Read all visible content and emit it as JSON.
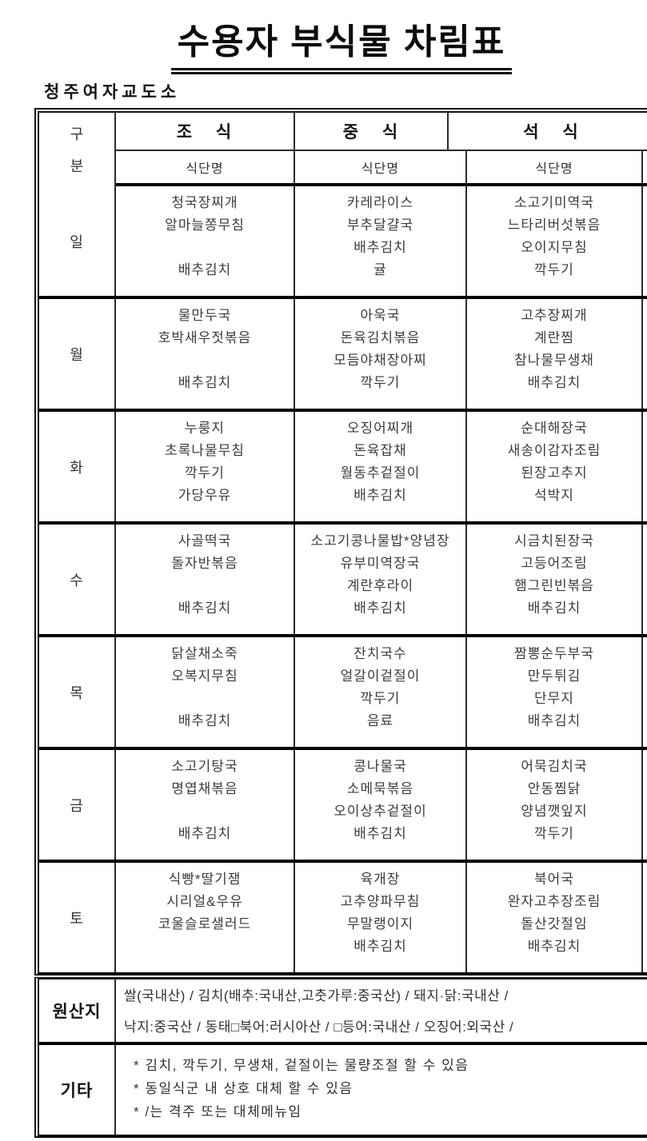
{
  "page": {
    "title": "수용자 부식물 차림표",
    "facility": "청주여자교도소"
  },
  "table": {
    "header": {
      "division_top": "구",
      "division_bottom": "분",
      "meals": [
        "조 식",
        "중 식",
        "석 식"
      ],
      "menu_name": "식단명"
    },
    "days": [
      {
        "label": "일",
        "breakfast": [
          "청국장찌개",
          "알마늘쫑무침",
          "",
          "배추김치"
        ],
        "lunch": [
          "카레라이스",
          "부추달걀국",
          "배추김치",
          "귤"
        ],
        "dinner": [
          "소고기미역국",
          "느타리버섯볶음",
          "오이지무침",
          "깍두기"
        ]
      },
      {
        "label": "월",
        "breakfast": [
          "물만두국",
          "호박새우젓볶음",
          "",
          "배추김치"
        ],
        "lunch": [
          "아욱국",
          "돈육김치볶음",
          "모듬야채장아찌",
          "깍두기"
        ],
        "dinner": [
          "고추장찌개",
          "계란찜",
          "참나물무생채",
          "배추김치"
        ]
      },
      {
        "label": "화",
        "breakfast": [
          "누룽지",
          "초록나물무침",
          "깍두기",
          "가당우유"
        ],
        "lunch": [
          "오징어찌개",
          "돈육잡채",
          "월동추겉절이",
          "배추김치"
        ],
        "dinner": [
          "순대해장국",
          "새송이감자조림",
          "된장고추지",
          "석박지"
        ]
      },
      {
        "label": "수",
        "breakfast": [
          "사골떡국",
          "돌자반볶음",
          "",
          "배추김치"
        ],
        "lunch": [
          "소고기콩나물밥*양념장",
          "유부미역장국",
          "계란후라이",
          "배추김치"
        ],
        "dinner": [
          "시금치된장국",
          "고등어조림",
          "햄그린빈볶음",
          "배추김치"
        ]
      },
      {
        "label": "목",
        "breakfast": [
          "닭살채소죽",
          "오복지무침",
          "",
          "배추김치"
        ],
        "lunch": [
          "잔치국수",
          "얼갈이겉절이",
          "깍두기",
          "음료"
        ],
        "dinner": [
          "짬뽕순두부국",
          "만두튀김",
          "단무지",
          "배추김치"
        ]
      },
      {
        "label": "금",
        "breakfast": [
          "소고기탕국",
          "명엽채볶음",
          "",
          "배추김치"
        ],
        "lunch": [
          "콩나물국",
          "소메묵볶음",
          "오이상추겉절이",
          "배추김치"
        ],
        "dinner": [
          "어묵김치국",
          "안동찜닭",
          "양념깻잎지",
          "깍두기"
        ]
      },
      {
        "label": "토",
        "breakfast": [
          "식빵*딸기잼",
          "시리얼&우유",
          "코울슬로샐러드"
        ],
        "lunch": [
          "육개장",
          "고추양파무침",
          "무말랭이지",
          "배추김치"
        ],
        "dinner": [
          "북어국",
          "완자고추장조림",
          "돌산갓절임",
          "배추김치"
        ]
      }
    ]
  },
  "footer": {
    "origin_label": "원산지",
    "origin_lines": [
      "쌀(국내산) / 김치(배추:국내산,고춧가루:중국산) / 돼지·닭:국내산 /",
      "낙지:중국산 / 동태□북어:러시아산 / □등어:국내산 / 오징어:외국산 /"
    ],
    "etc_label": "기타",
    "etc_lines": [
      "* 김치, 깍두기, 무생채, 겉절이는 물량조절 할 수 있음",
      "* 동일식군 내 상호 대체 할 수 있음",
      "* /는 격주 또는 대체메뉴임"
    ]
  },
  "colors": {
    "line_black": "#000000",
    "line_gray": "#2b2b2b",
    "text_body": "#3c3c3c",
    "text_heading": "#141414"
  }
}
